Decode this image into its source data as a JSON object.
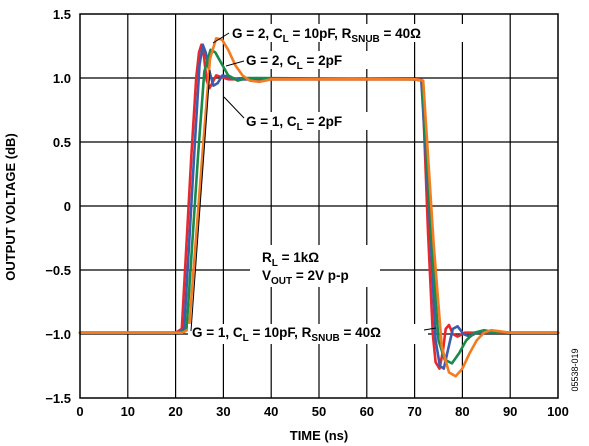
{
  "chart_data": {
    "type": "line",
    "title": "",
    "xlabel": "TIME (ns)",
    "ylabel": "OUTPUT VOLTAGE (dB)",
    "xlim": [
      0,
      100
    ],
    "ylim": [
      -1.5,
      1.5
    ],
    "x_ticks": [
      "0",
      "10",
      "20",
      "30",
      "40",
      "50",
      "60",
      "70",
      "80",
      "90",
      "100"
    ],
    "y_ticks": [
      "1.5",
      "1.0",
      "0.5",
      "0",
      "−0.5",
      "−1.0",
      "−1.5"
    ],
    "grid": true,
    "figure_id": "05538-019",
    "conditions": {
      "rl": {
        "main": "R",
        "sub": "L",
        "rest": " = 1kΩ"
      },
      "vout": {
        "main": "V",
        "sub": "OUT",
        "rest": " = 2V p-p"
      }
    },
    "series": [
      {
        "color": "#e8282e",
        "points": [
          [
            0,
            -0.99
          ],
          [
            20,
            -0.99
          ],
          [
            21.3,
            -0.96
          ],
          [
            23.3,
            0.4
          ],
          [
            24.3,
            1.0
          ],
          [
            24.9,
            1.2
          ],
          [
            25.4,
            1.26
          ],
          [
            25.9,
            1.18
          ],
          [
            26.5,
            0.98
          ],
          [
            27.1,
            0.92
          ],
          [
            27.8,
            0.97
          ],
          [
            28.5,
            1.02
          ],
          [
            29.4,
            1.01
          ],
          [
            31,
            0.99
          ],
          [
            40,
            0.99
          ],
          [
            71,
            0.99
          ],
          [
            71.6,
            0.98
          ],
          [
            72.8,
            -0.2
          ],
          [
            73.8,
            -1.0
          ],
          [
            74.4,
            -1.22
          ],
          [
            75.2,
            -1.27
          ],
          [
            75.9,
            -1.14
          ],
          [
            76.5,
            -0.96
          ],
          [
            77.2,
            -0.93
          ],
          [
            78,
            -1.0
          ],
          [
            79,
            -1.02
          ],
          [
            80.5,
            -0.99
          ],
          [
            100,
            -0.99
          ]
        ]
      },
      {
        "color": "#3c5dad",
        "points": [
          [
            0,
            -0.99
          ],
          [
            20.5,
            -0.99
          ],
          [
            21.8,
            -0.96
          ],
          [
            23.9,
            0.4
          ],
          [
            25,
            1.1
          ],
          [
            25.7,
            1.26
          ],
          [
            26.3,
            1.2
          ],
          [
            27,
            1.06
          ],
          [
            27.9,
            0.94
          ],
          [
            28.8,
            0.96
          ],
          [
            29.8,
            1.02
          ],
          [
            31,
            1.01
          ],
          [
            33,
            0.99
          ],
          [
            70,
            0.99
          ],
          [
            71.4,
            0.98
          ],
          [
            73.3,
            -0.2
          ],
          [
            74.4,
            -1.05
          ],
          [
            75.3,
            -1.25
          ],
          [
            76.1,
            -1.27
          ],
          [
            77,
            -1.12
          ],
          [
            78,
            -0.96
          ],
          [
            79,
            -0.94
          ],
          [
            80.2,
            -1.0
          ],
          [
            81.5,
            -1.02
          ],
          [
            83,
            -0.99
          ],
          [
            100,
            -0.99
          ]
        ]
      },
      {
        "color": "#1a8a4a",
        "points": [
          [
            0,
            -0.99
          ],
          [
            21,
            -0.99
          ],
          [
            22.3,
            -0.96
          ],
          [
            24.7,
            0.4
          ],
          [
            26,
            1.05
          ],
          [
            27.3,
            1.22
          ],
          [
            28.3,
            1.2
          ],
          [
            29.5,
            1.12
          ],
          [
            31,
            1.02
          ],
          [
            33,
            0.98
          ],
          [
            35,
            1.0
          ],
          [
            38,
            1.0
          ],
          [
            70,
            0.99
          ],
          [
            71.6,
            0.98
          ],
          [
            73.6,
            -0.3
          ],
          [
            75,
            -1.05
          ],
          [
            76.3,
            -1.2
          ],
          [
            77.8,
            -1.23
          ],
          [
            79.3,
            -1.15
          ],
          [
            80.8,
            -1.05
          ],
          [
            82.5,
            -0.99
          ],
          [
            84.5,
            -0.97
          ],
          [
            87,
            -0.99
          ],
          [
            100,
            -0.99
          ]
        ]
      },
      {
        "color": "#f47b20",
        "points": [
          [
            0,
            -0.99
          ],
          [
            21.5,
            -0.99
          ],
          [
            22.8,
            -0.96
          ],
          [
            25.6,
            0.4
          ],
          [
            27.2,
            1.15
          ],
          [
            28.5,
            1.31
          ],
          [
            29.7,
            1.3
          ],
          [
            31,
            1.22
          ],
          [
            32.5,
            1.1
          ],
          [
            34,
            1.02
          ],
          [
            35.5,
            0.98
          ],
          [
            37.5,
            0.97
          ],
          [
            40,
            0.99
          ],
          [
            70,
            0.99
          ],
          [
            71.8,
            0.98
          ],
          [
            74,
            -0.3
          ],
          [
            75.7,
            -1.1
          ],
          [
            77.2,
            -1.3
          ],
          [
            78.6,
            -1.33
          ],
          [
            80,
            -1.27
          ],
          [
            81.5,
            -1.15
          ],
          [
            83,
            -1.05
          ],
          [
            84.5,
            -0.99
          ],
          [
            86,
            -0.97
          ],
          [
            88,
            -0.98
          ],
          [
            90,
            -0.99
          ],
          [
            100,
            -0.99
          ]
        ]
      }
    ],
    "annotations": [
      {
        "text": "G = 2, C",
        "sub1": "L",
        "mid": " = 10pF, R",
        "sub2": "SNUB",
        "tail": " = 40Ω"
      },
      {
        "text": "G = 2, C",
        "sub1": "L",
        "mid": " = 2pF",
        "sub2": "",
        "tail": ""
      },
      {
        "text": "G = 1, C",
        "sub1": "L",
        "mid": " = 2pF",
        "sub2": "",
        "tail": ""
      },
      {
        "text": "G = 1, C",
        "sub1": "L",
        "mid": " = 10pF, R",
        "sub2": "SNUB",
        "tail": " = 40Ω"
      }
    ]
  }
}
